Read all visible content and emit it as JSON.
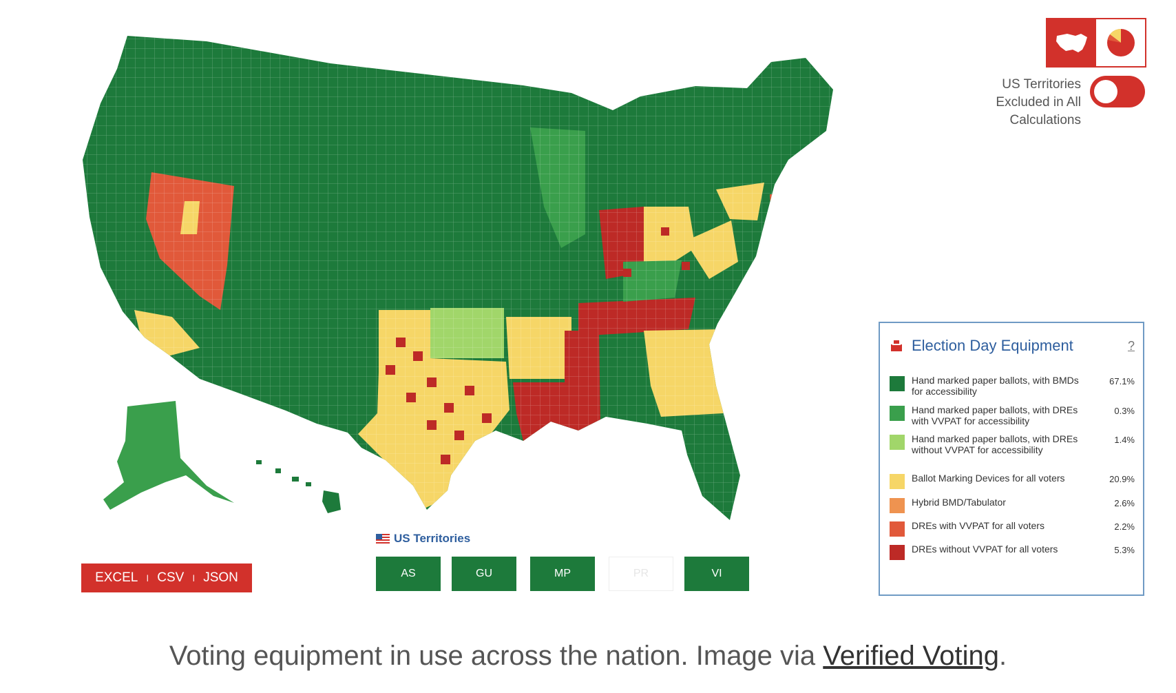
{
  "colors": {
    "hand_bmd": "#1d7a3b",
    "hand_dre_vvpat": "#3a9f4c",
    "hand_dre_no_vvpat": "#a1d66a",
    "bmd_all": "#f6d667",
    "hybrid": "#ef9350",
    "dre_vvpat": "#e1593a",
    "dre_no_vvpat": "#bd2a26",
    "accent": "#d2312b"
  },
  "toggle": {
    "label_line1": "US Territories",
    "label_line2": "Excluded in All",
    "label_line3": "Calculations"
  },
  "legend": {
    "title": "Election Day Equipment",
    "help": "?",
    "items": [
      {
        "label": "Hand marked paper ballots, with BMDs for accessibility",
        "value": "67.1%",
        "color": "#1d7a3b"
      },
      {
        "label": "Hand marked paper ballots, with DREs with VVPAT for accessibility",
        "value": "0.3%",
        "color": "#3a9f4c"
      },
      {
        "label": "Hand marked paper ballots, with DREs without VVPAT for accessibility",
        "value": "1.4%",
        "color": "#a1d66a"
      },
      {
        "label": "Ballot Marking Devices for all voters",
        "value": "20.9%",
        "color": "#f6d667"
      },
      {
        "label": "Hybrid BMD/Tabulator",
        "value": "2.6%",
        "color": "#ef9350"
      },
      {
        "label": "DREs with VVPAT for all voters",
        "value": "2.2%",
        "color": "#e1593a"
      },
      {
        "label": "DREs without VVPAT for all voters",
        "value": "5.3%",
        "color": "#bd2a26"
      }
    ]
  },
  "export": {
    "excel": "EXCEL",
    "csv": "CSV",
    "json": "JSON",
    "sep": "I"
  },
  "territories": {
    "title": "US Territories",
    "buttons": [
      {
        "label": "AS",
        "enabled": true
      },
      {
        "label": "GU",
        "enabled": true
      },
      {
        "label": "MP",
        "enabled": true
      },
      {
        "label": "PR",
        "enabled": false
      },
      {
        "label": "VI",
        "enabled": true
      }
    ]
  },
  "caption": {
    "text": "Voting equipment in use across the nation. Image via ",
    "link": "Verified Voting",
    "end": "."
  }
}
